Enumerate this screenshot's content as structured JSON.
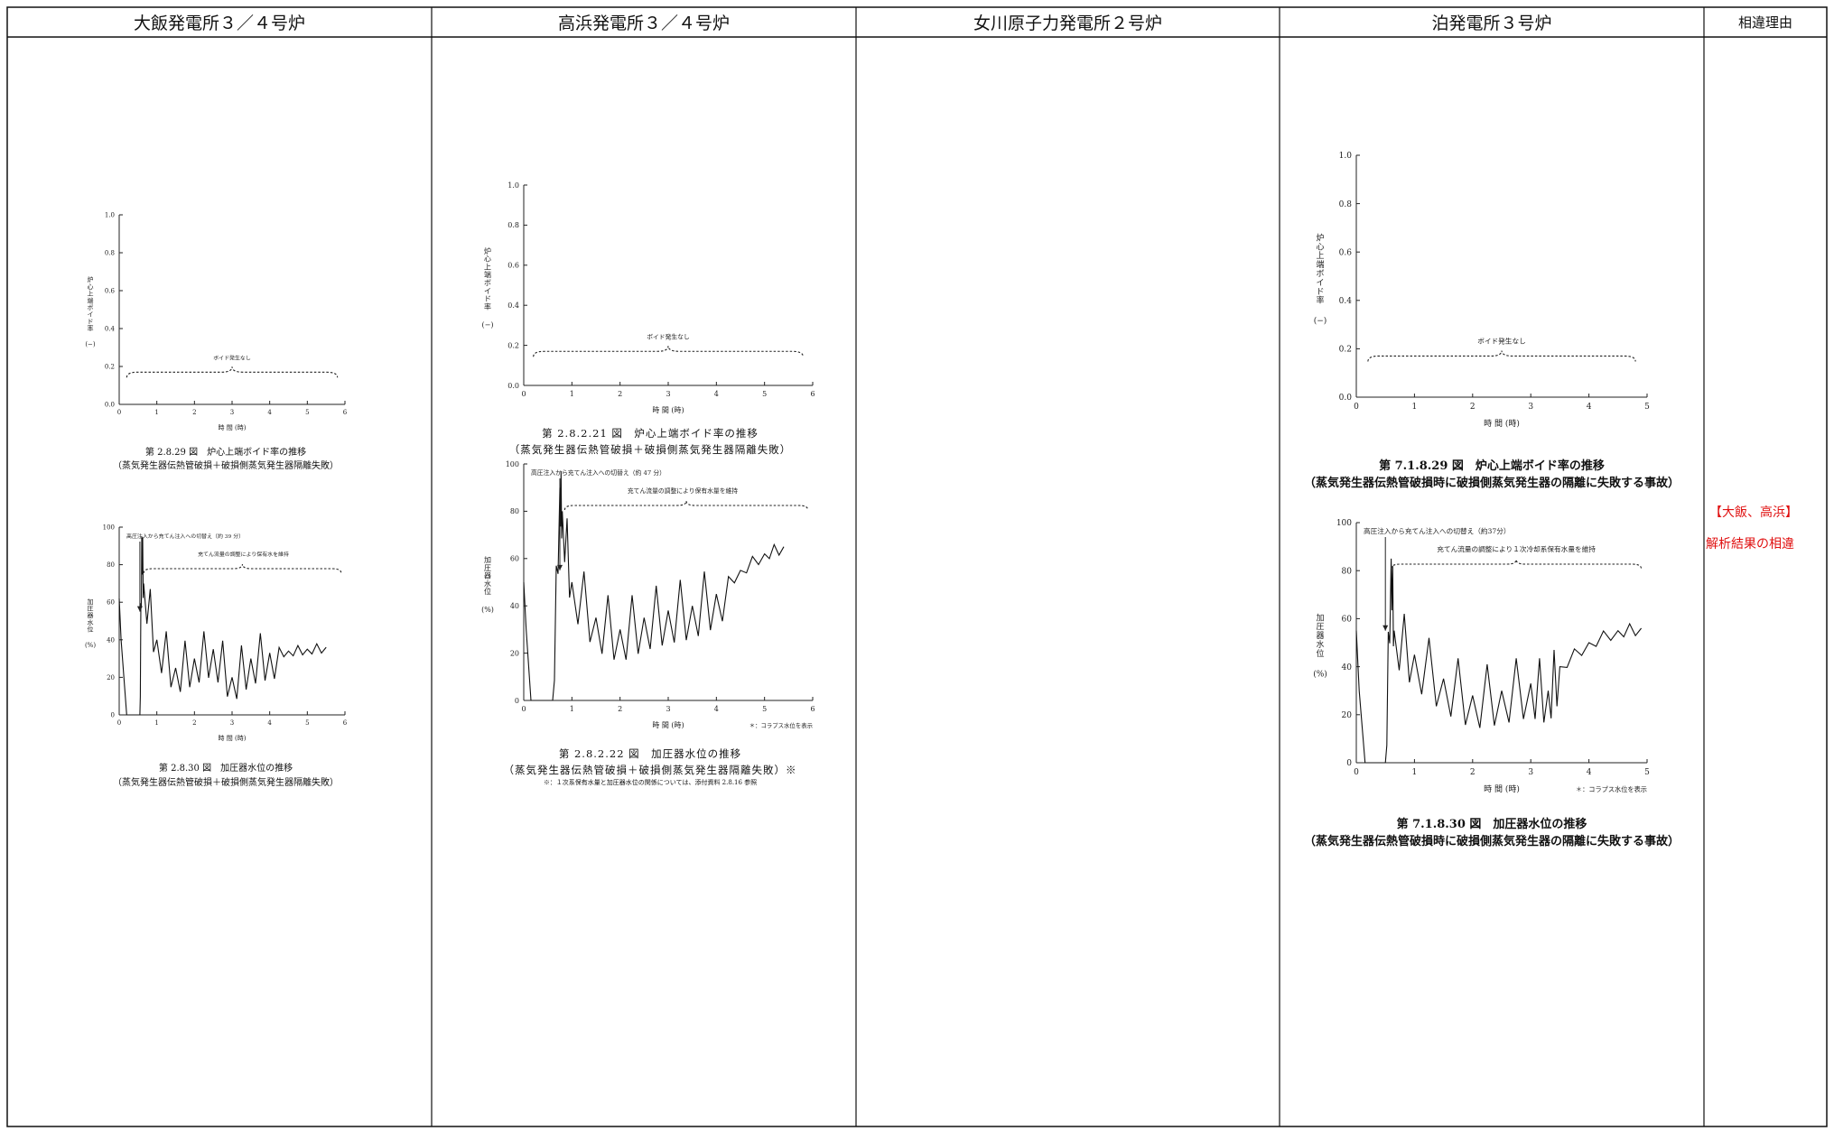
{
  "header": {
    "columns": [
      "大飯発電所３／４号炉",
      "高浜発電所３／４号炉",
      "女川原子力発電所２号炉",
      "泊発電所３号炉",
      "相違理由"
    ]
  },
  "void_chart_common": {
    "ylabel": "炉心上端ボイド率\n(−)",
    "xlabel": "時 間 (時)",
    "annotation": "ボイド発生なし",
    "y_ticks": [
      "0.0",
      "0.2",
      "0.4",
      "0.6",
      "0.8",
      "1.0"
    ]
  },
  "level_chart_common": {
    "ylabel": "加圧器水位\n(%)",
    "xlabel": "時 間 (時)",
    "y_ticks": [
      "0",
      "20",
      "40",
      "60",
      "80",
      "100"
    ],
    "footnote_collapse": "＊：コラプス水位を表示"
  },
  "ohi": {
    "void_caption": "第 2.8.29 図　炉心上端ボイド率の推移",
    "void_sub": "（蒸気発生器伝熱管破損＋破損側蒸気発生器隔離失敗）",
    "level_caption": "第 2.8.30 図　加圧器水位の推移",
    "level_sub": "（蒸気発生器伝熱管破損＋破損側蒸気発生器隔離失敗）",
    "level_ann1": "高圧注入から充てん注入への切替え（約 39 分）",
    "level_ann2": "充てん流量の調整により保有水を維持"
  },
  "takahama": {
    "void_caption": "第 2.8.2.21 図　炉心上端ボイド率の推移",
    "void_sub": "（蒸気発生器伝熱管破損＋破損側蒸気発生器隔離失敗）",
    "level_caption": "第 2.8.2.22 図　加圧器水位の推移",
    "level_sub": "（蒸気発生器伝熱管破損＋破損側蒸気発生器隔離失敗）※",
    "level_ann1": "高圧注入から充てん注入への切替え（約 47 分）",
    "level_ann2": "充てん流量の調整により保有水量を維持",
    "level_note": "※：１次系保有水量と加圧器水位の関係については、添付資料 2.8.16 参照"
  },
  "tomari": {
    "void_caption": "第 7.1.8.29 図　炉心上端ボイド率の推移",
    "void_sub": "（蒸気発生器伝熱管破損時に破損側蒸気発生器の隔離に失敗する事故）",
    "level_caption": "第 7.1.8.30 図　加圧器水位の推移",
    "level_sub": "（蒸気発生器伝熱管破損時に破損側蒸気発生器の隔離に失敗する事故）",
    "level_ann1": "高圧注入から充てん注入への切替え（約37分）",
    "level_ann2": "充てん流量の調整により１次冷却系保有水量を維持"
  },
  "difference": {
    "plants": "【大飯、高浜】",
    "reason": "解析結果の相違"
  },
  "colors": {
    "note_red": "#e01010",
    "line": "#111111"
  },
  "chart_data": [
    {
      "id": "ohi-void",
      "type": "line",
      "title": "第 2.8.29 図　炉心上端ボイド率の推移",
      "ylabel": "炉心上端ボイド率(−)",
      "xlabel": "時 間 (時)",
      "xlim": [
        0,
        6
      ],
      "ylim": [
        0,
        1.0
      ],
      "series": [
        {
          "x": [
            0,
            6
          ],
          "values": [
            0,
            0
          ]
        }
      ]
    },
    {
      "id": "ohi-level",
      "type": "line",
      "title": "第 2.8.30 図　加圧器水位の推移",
      "ylabel": "加圧器水位(%)",
      "xlabel": "時 間 (時)",
      "xlim": [
        0,
        6
      ],
      "ylim": [
        0,
        100
      ],
      "series": [
        {
          "x": [
            0,
            0.05,
            0.2,
            0.55,
            0.6,
            0.65,
            1.0,
            1.5,
            2.0,
            2.5,
            3.0,
            3.5,
            4.0,
            4.5,
            5.0,
            5.5
          ],
          "values": [
            62,
            40,
            0,
            0,
            95,
            70,
            40,
            25,
            30,
            35,
            20,
            30,
            33,
            34,
            35,
            36
          ]
        }
      ]
    },
    {
      "id": "takahama-void",
      "type": "line",
      "title": "第 2.8.2.21 図　炉心上端ボイド率の推移",
      "ylabel": "炉心上端ボイド率(−)",
      "xlabel": "時 間 (時)",
      "xlim": [
        0,
        6
      ],
      "ylim": [
        0,
        1.0
      ],
      "series": [
        {
          "x": [
            0,
            6
          ],
          "values": [
            0,
            0
          ]
        }
      ]
    },
    {
      "id": "takahama-level",
      "type": "line",
      "title": "第 2.8.2.22 図　加圧器水位の推移",
      "ylabel": "加圧器水位(%)",
      "xlabel": "時 間 (時)",
      "xlim": [
        0,
        6
      ],
      "ylim": [
        0,
        100
      ],
      "series": [
        {
          "x": [
            0,
            0.05,
            0.15,
            0.6,
            0.75,
            0.8,
            1.0,
            1.5,
            2.0,
            2.5,
            3.0,
            3.5,
            4.0,
            4.5,
            5.0,
            5.4
          ],
          "values": [
            50,
            30,
            0,
            0,
            90,
            80,
            50,
            35,
            30,
            35,
            38,
            40,
            45,
            55,
            62,
            65
          ]
        }
      ]
    },
    {
      "id": "tomari-void",
      "type": "line",
      "title": "第 7.1.8.29 図　炉心上端ボイド率の推移",
      "ylabel": "炉心上端ボイド率(−)",
      "xlabel": "時 間 (時)",
      "xlim": [
        0,
        5
      ],
      "ylim": [
        0,
        1.0
      ],
      "series": [
        {
          "x": [
            0,
            5
          ],
          "values": [
            0,
            0
          ]
        }
      ]
    },
    {
      "id": "tomari-level",
      "type": "line",
      "title": "第 7.1.8.30 図　加圧器水位の推移",
      "ylabel": "加圧器水位(%)",
      "xlabel": "時 間 (時)",
      "xlim": [
        0,
        5
      ],
      "ylim": [
        0,
        100
      ],
      "series": [
        {
          "x": [
            0,
            0.05,
            0.15,
            0.5,
            0.6,
            0.65,
            1.0,
            1.5,
            2.0,
            2.5,
            3.0,
            3.3,
            3.5,
            4.0,
            4.5,
            4.9
          ],
          "values": [
            55,
            30,
            0,
            0,
            85,
            55,
            45,
            35,
            28,
            30,
            33,
            30,
            40,
            50,
            55,
            56
          ]
        }
      ]
    }
  ]
}
